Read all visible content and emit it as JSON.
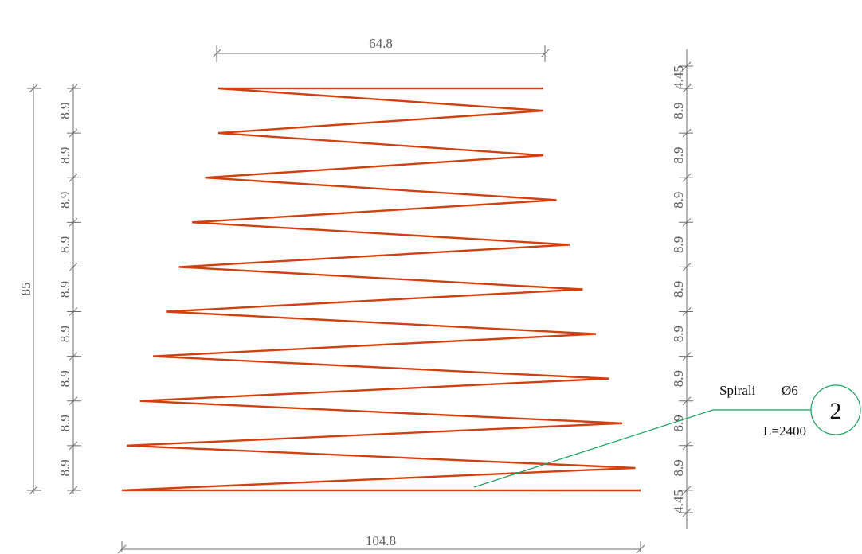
{
  "dimensions": {
    "top_width": "64.8",
    "bottom_width": "104.8",
    "overall_height": "85",
    "left_spacings": [
      "8.9",
      "8.9",
      "8.9",
      "8.9",
      "8.9",
      "8.9",
      "8.9",
      "8.9",
      "8.9"
    ],
    "right_spacings": [
      "4.45",
      "8.9",
      "8.9",
      "8.9",
      "8.9",
      "8.9",
      "8.9",
      "8.9",
      "8.9",
      "8.9",
      "4.45"
    ]
  },
  "rebar_label": {
    "name": "Spirali",
    "diameter": "Ø6",
    "length": "L=2400",
    "mark": "2"
  },
  "colors": {
    "rebar": "#d2400f",
    "leader": "#17a35a",
    "dimension": "#6e6e6e"
  }
}
